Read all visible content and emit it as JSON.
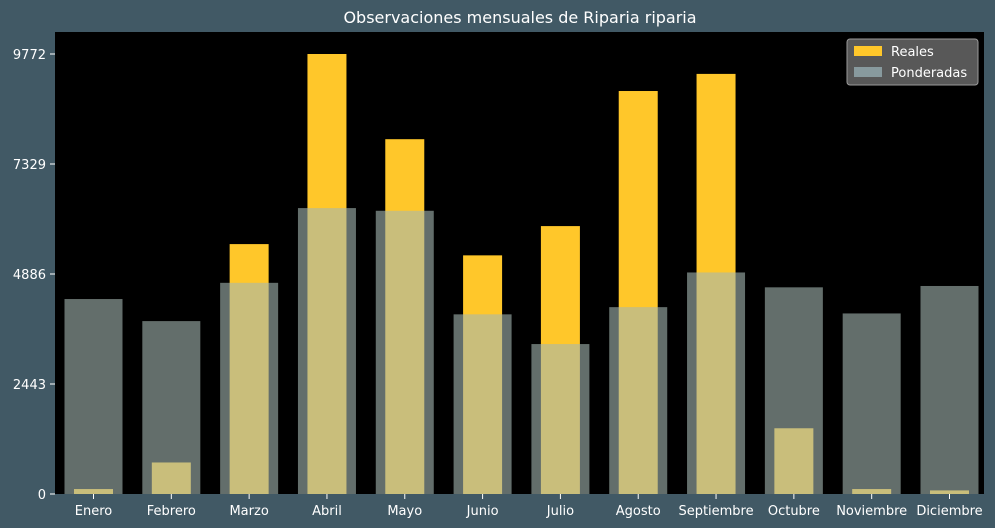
{
  "chart_data": {
    "type": "bar",
    "title": "Observaciones mensuales de Riparia riparia",
    "xlabel": "",
    "ylabel": "",
    "categories": [
      "Enero",
      "Febrero",
      "Marzo",
      "Abril",
      "Mayo",
      "Junio",
      "Julio",
      "Agosto",
      "Septiembre",
      "Octubre",
      "Noviembre",
      "Diciembre"
    ],
    "series": [
      {
        "name": "Reales",
        "values": [
          110,
          700,
          5550,
          9772,
          7880,
          5300,
          5950,
          8950,
          9330,
          1460,
          110,
          80
        ]
      },
      {
        "name": "Ponderadas",
        "values": [
          4330,
          3840,
          4690,
          6350,
          6290,
          3990,
          3330,
          4150,
          4920,
          4590,
          4010,
          4620
        ]
      }
    ],
    "yticks": [
      "0",
      "2443",
      "4886",
      "7329",
      "9772"
    ],
    "ylim": [
      0,
      9772
    ],
    "legend_position": "top-right",
    "grid": false
  },
  "colors": {
    "background": "#415965",
    "plot_background": "#000000",
    "reales": "#ffc72a",
    "ponderadas": "#a5b8b2",
    "ponderadas_opacity": 0.6,
    "text": "#ffffff"
  }
}
